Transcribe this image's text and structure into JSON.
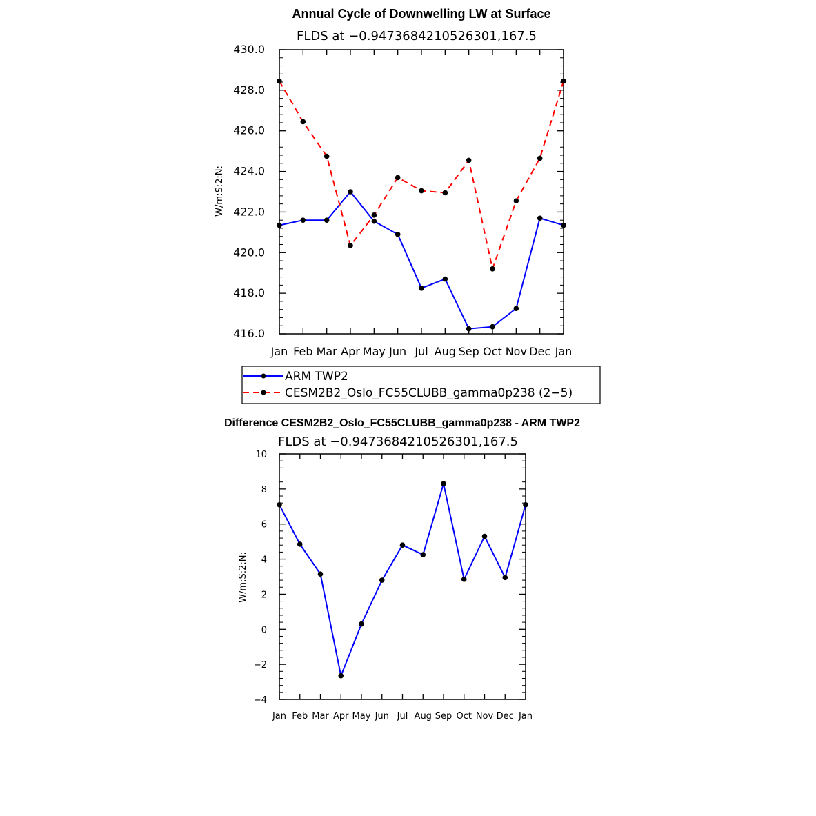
{
  "chart_data": [
    {
      "type": "line",
      "title": "Annual Cycle of Downwelling LW at Surface",
      "subtitle": "FLDS at −0.9473684210526301,167.5",
      "ylabel": "W/m:S:2:N:",
      "xlabel": "",
      "categories": [
        "Jan",
        "Feb",
        "Mar",
        "Apr",
        "May",
        "Jun",
        "Jul",
        "Aug",
        "Sep",
        "Oct",
        "Nov",
        "Dec",
        "Jan"
      ],
      "ylim": [
        416.0,
        430.0
      ],
      "yticks": [
        "416.0",
        "418.0",
        "420.0",
        "422.0",
        "424.0",
        "426.0",
        "428.0",
        "430.0"
      ],
      "series": [
        {
          "name": "ARM TWP2",
          "color": "#0000ff",
          "dash": "solid",
          "values": [
            421.35,
            421.6,
            421.6,
            423.0,
            421.55,
            420.9,
            418.25,
            418.7,
            416.25,
            416.35,
            417.25,
            421.7,
            421.35
          ]
        },
        {
          "name": "CESM2B2_Oslo_FC55CLUBB_gamma0p238 (2−5)",
          "color": "#ff0000",
          "dash": "dashed",
          "values": [
            428.45,
            426.45,
            424.75,
            420.35,
            421.85,
            423.7,
            423.05,
            422.95,
            424.55,
            419.2,
            422.55,
            424.65,
            428.45
          ]
        }
      ],
      "legend": [
        "ARM TWP2",
        "CESM2B2_Oslo_FC55CLUBB_gamma0p238 (2−5)"
      ]
    },
    {
      "type": "line",
      "title": "Difference CESM2B2_Oslo_FC55CLUBB_gamma0p238 - ARM TWP2",
      "subtitle": "FLDS at −0.9473684210526301,167.5",
      "ylabel": "W/m:S:2:N:",
      "xlabel": "",
      "categories": [
        "Jan",
        "Feb",
        "Mar",
        "Apr",
        "May",
        "Jun",
        "Jul",
        "Aug",
        "Sep",
        "Oct",
        "Nov",
        "Dec",
        "Jan"
      ],
      "ylim": [
        -4,
        10
      ],
      "yticks": [
        "−4",
        "−2",
        "0",
        "2",
        "4",
        "6",
        "8",
        "10"
      ],
      "series": [
        {
          "name": "Difference",
          "color": "#0000ff",
          "dash": "solid",
          "values": [
            7.1,
            4.85,
            3.15,
            -2.65,
            0.3,
            2.8,
            4.8,
            4.25,
            8.3,
            2.85,
            5.3,
            2.95,
            7.1
          ]
        }
      ]
    }
  ]
}
